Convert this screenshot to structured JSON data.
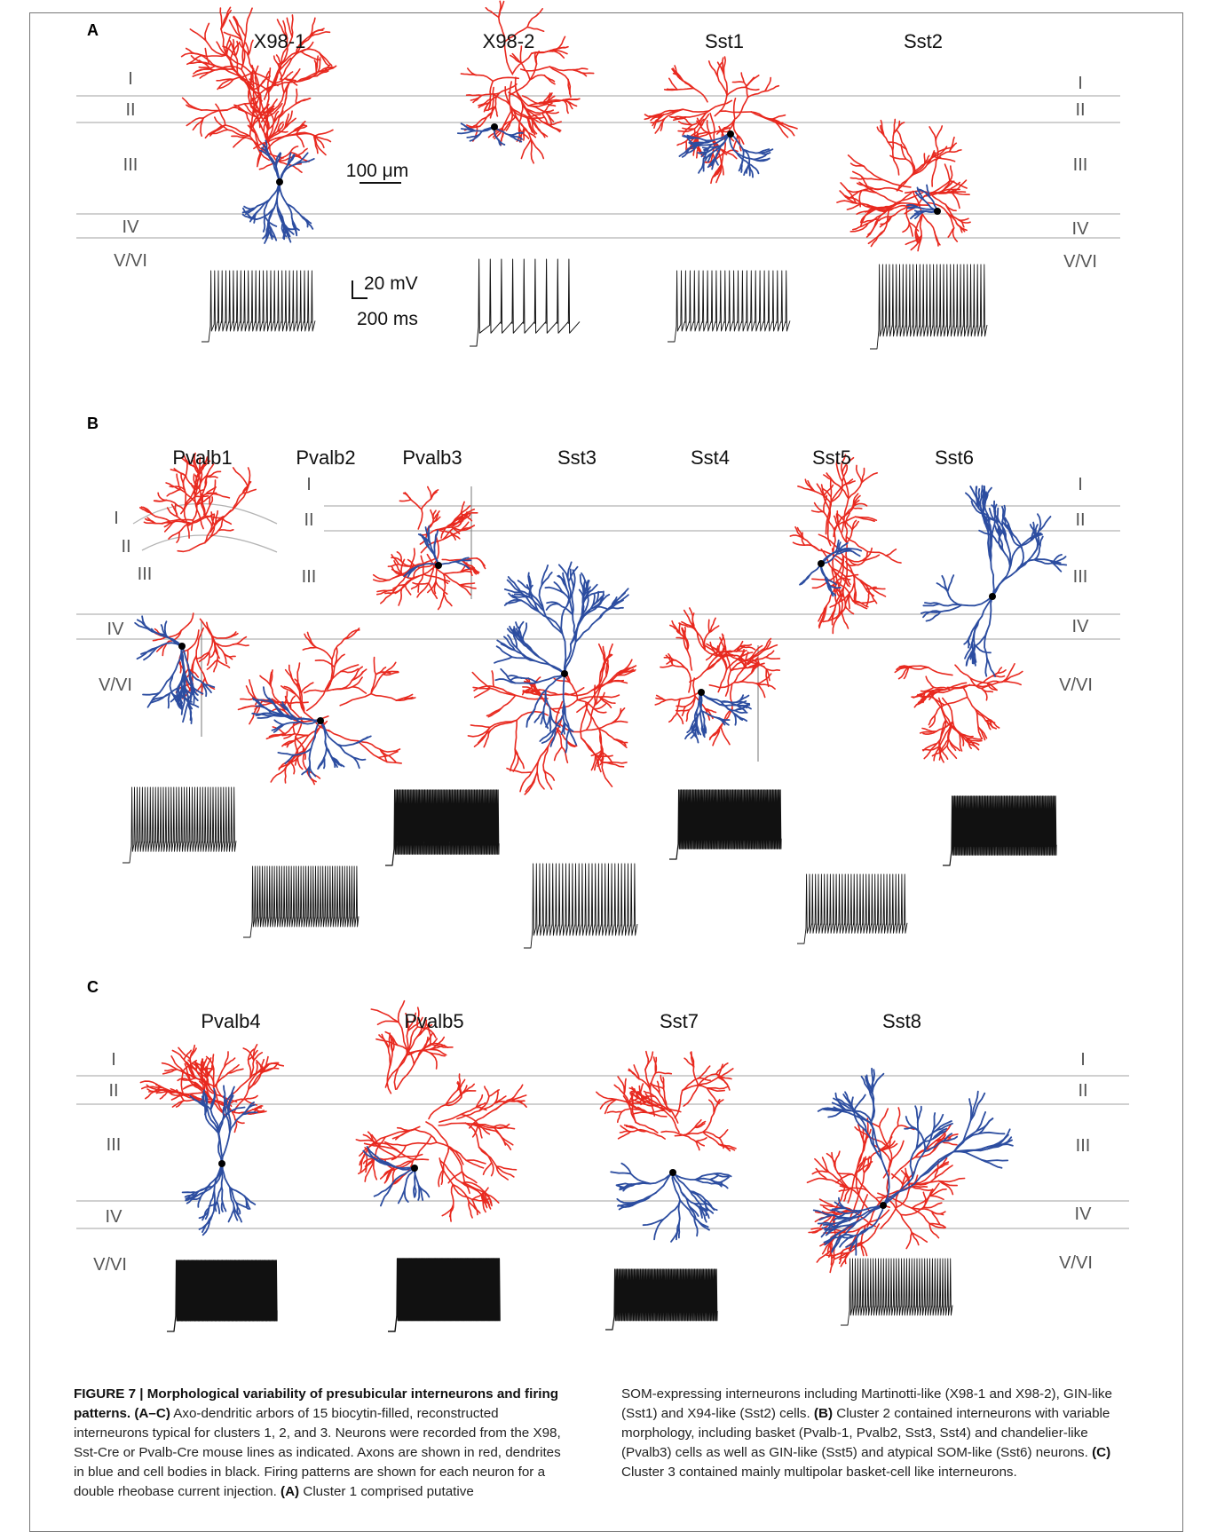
{
  "panels": [
    {
      "letter": "A",
      "cells": [
        "X98-1",
        "X98-2",
        "Sst1",
        "Sst2"
      ]
    },
    {
      "letter": "B",
      "cells": [
        "Pvalb1",
        "Pvalb2",
        "Pvalb3",
        "Sst3",
        "Sst4",
        "Sst5",
        "Sst6"
      ]
    },
    {
      "letter": "C",
      "cells": [
        "Pvalb4",
        "Pvalb5",
        "Sst7",
        "Sst8"
      ]
    }
  ],
  "layers": [
    "I",
    "II",
    "III",
    "IV",
    "V/VI"
  ],
  "scale_bars": {
    "length": "100 μm",
    "voltage": "20 mV",
    "time": "200 ms"
  },
  "colors": {
    "axon": "#e8291f",
    "dendrite": "#2c4da0",
    "soma": "#000000",
    "layer_line": "#b4b4b4",
    "trace": "#111111"
  },
  "caption": {
    "label": "FIGURE 7 | ",
    "title": "Morphological variability of presubicular interneurons and firing patterns.",
    "abc": "(A–C)",
    "part1": " Axo-dendritic arbors of 15 biocytin-filled, reconstructed interneurons typical for clusters 1, 2, and 3. Neurons were recorded from the X98, Sst-Cre or Pvalb-Cre mouse lines as indicated. Axons are shown in red, dendrites in blue and cell bodies in black. Firing patterns are shown for each neuron for a double rheobase current injection. ",
    "a_label": "(A)",
    "part2": " Cluster 1 comprised putative",
    "part3": "SOM-expressing interneurons including Martinotti-like (X98-1 and X98-2), GIN-like (Sst1) and X94-like (Sst2) cells. ",
    "b_label": "(B)",
    "part4": " Cluster 2 contained interneurons with variable morphology, including basket (Pvalb-1, Pvalb2, Sst3, Sst4) and chandelier-like (Pvalb3) cells as well as GIN-like (Sst5) and atypical SOM-like (Sst6) neurons. ",
    "c_label": "(C)",
    "part5": " Cluster 3 contained mainly multipolar basket-cell like interneurons."
  }
}
